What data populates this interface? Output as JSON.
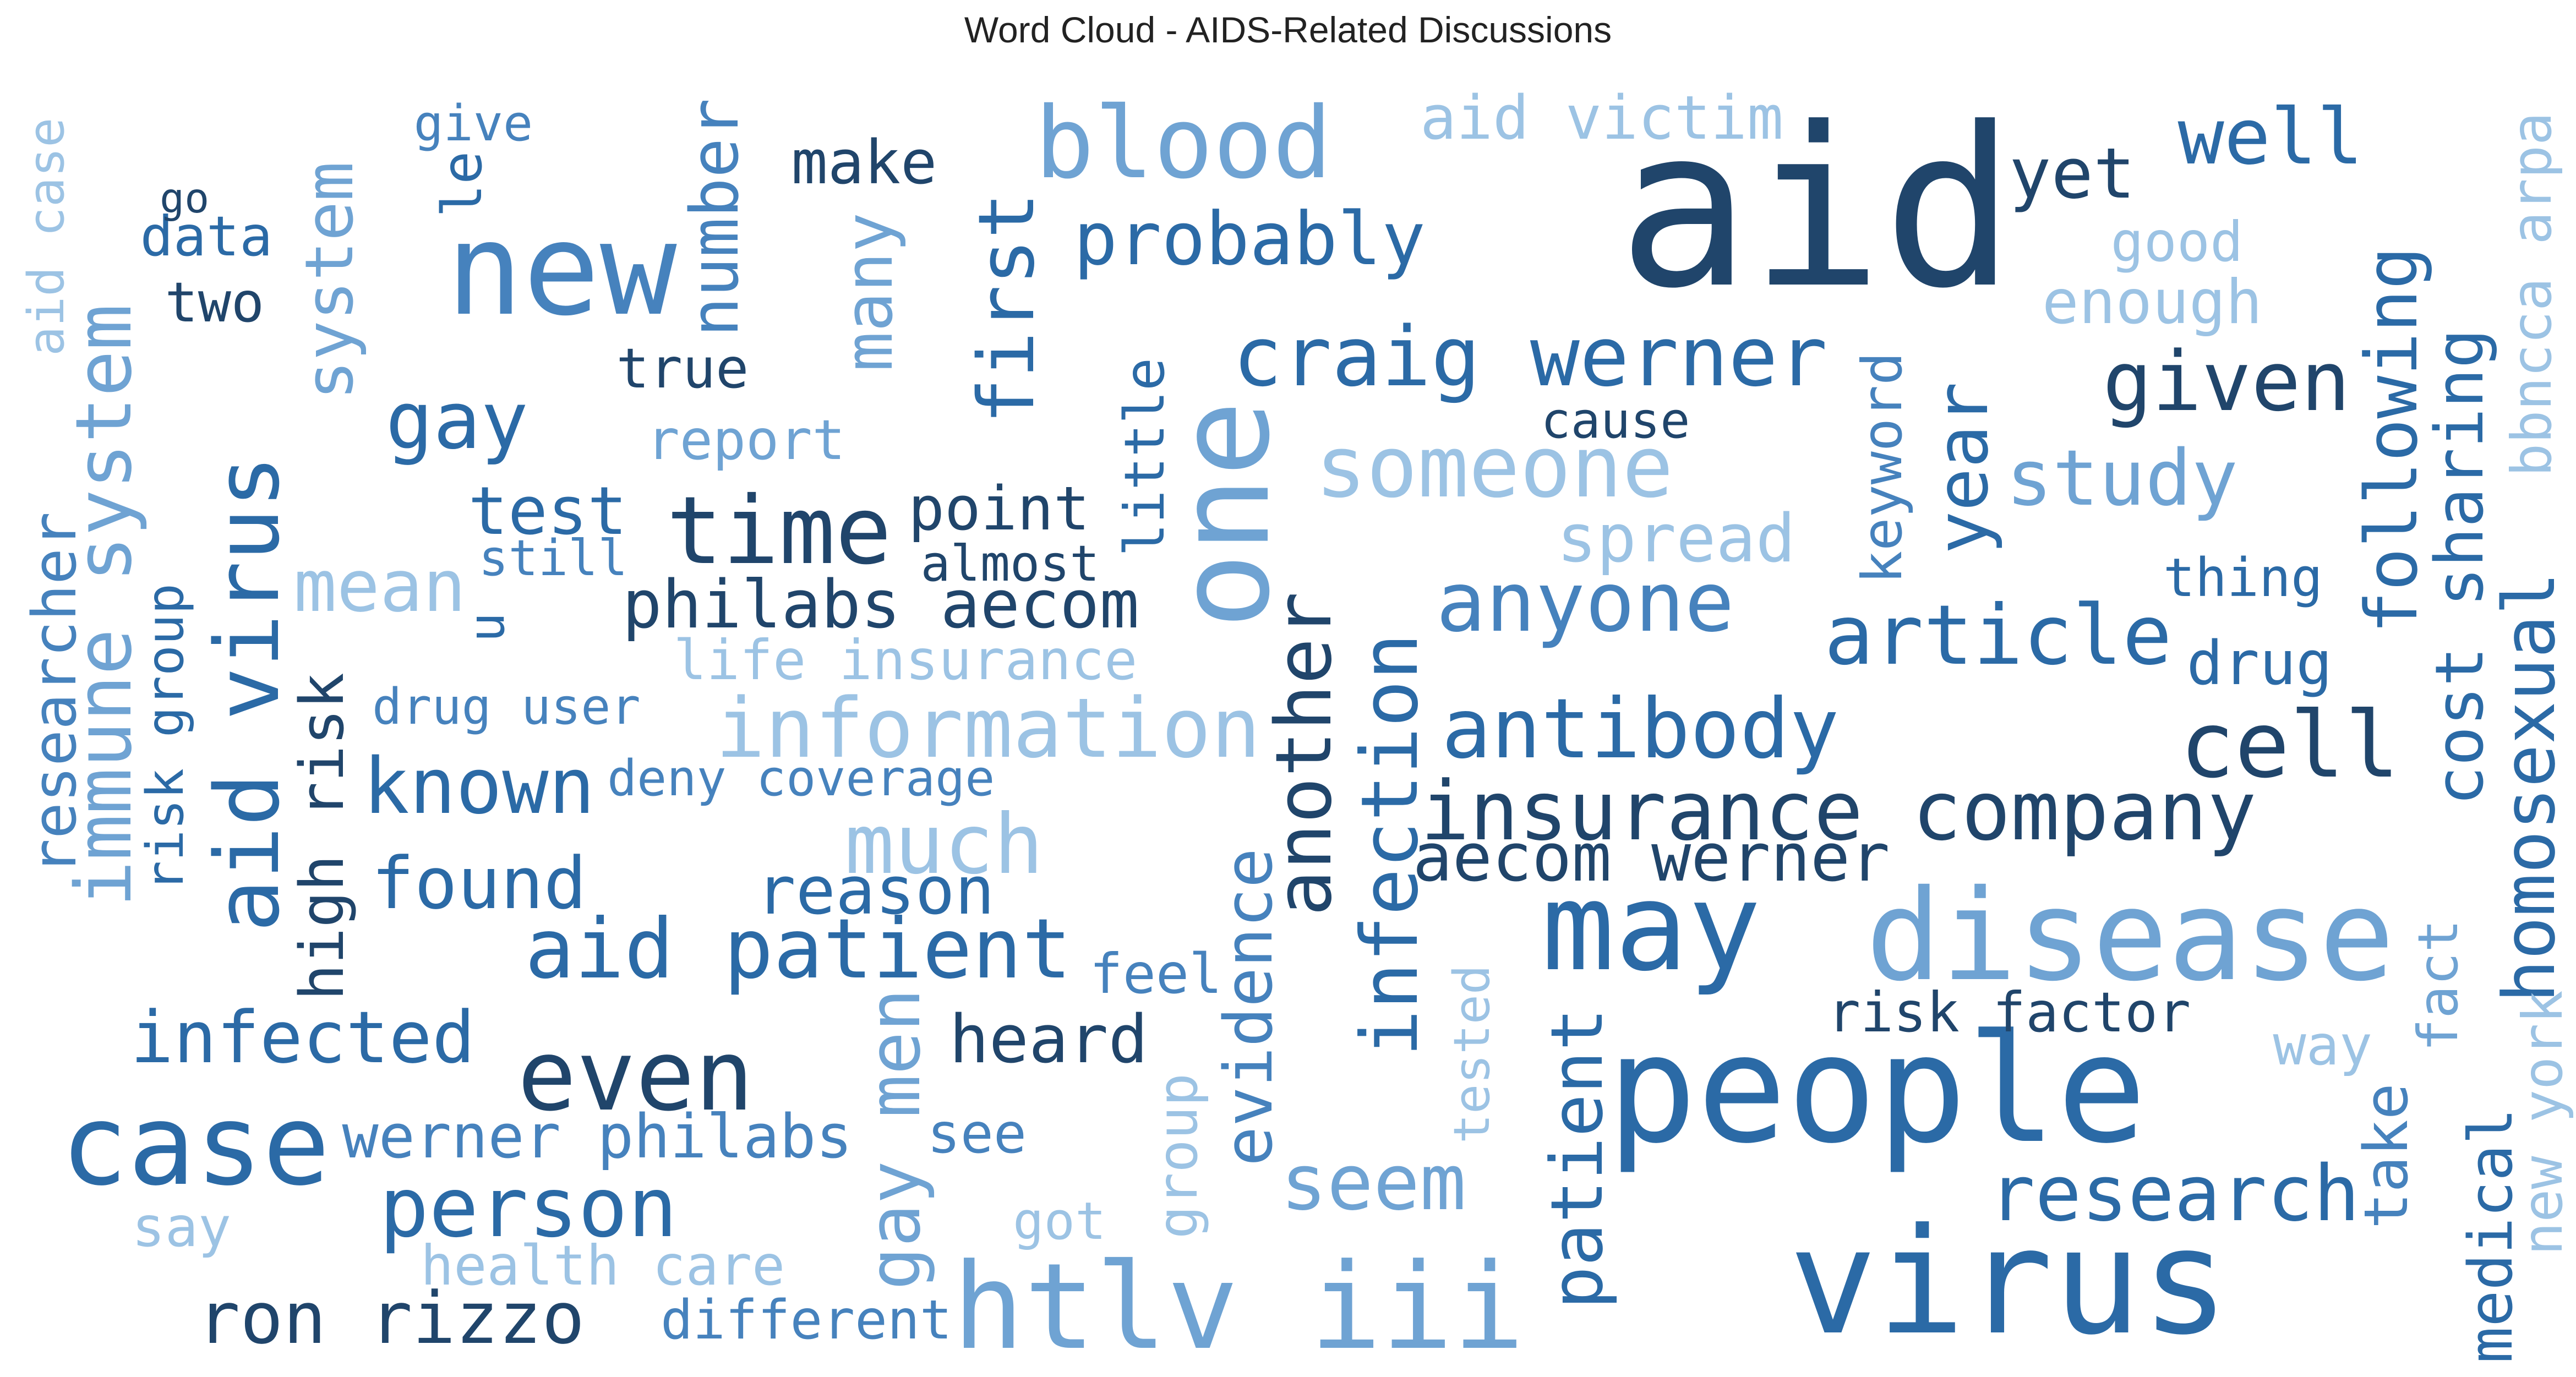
{
  "title": "Word Cloud - AIDS-Related Discussions",
  "palette": {
    "dark": "#20456b",
    "mid": "#2b6aa6",
    "medium": "#4682bd",
    "light": "#6fa3d3",
    "pale": "#9cc3e4"
  },
  "words": [
    {
      "text": "aid",
      "color": "dark"
    },
    {
      "text": "one",
      "color": "light"
    },
    {
      "text": "disease",
      "color": "light"
    },
    {
      "text": "people",
      "color": "mid"
    },
    {
      "text": "virus",
      "color": "mid"
    },
    {
      "text": "htlv iii",
      "color": "light"
    },
    {
      "text": "new",
      "color": "medium"
    },
    {
      "text": "case",
      "color": "mid"
    },
    {
      "text": "aid virus",
      "color": "mid"
    },
    {
      "text": "may",
      "color": "mid"
    },
    {
      "text": "blood",
      "color": "light"
    },
    {
      "text": "immune system",
      "color": "light"
    },
    {
      "text": "even",
      "color": "dark"
    },
    {
      "text": "time",
      "color": "dark"
    },
    {
      "text": "craig werner",
      "color": "mid"
    },
    {
      "text": "information",
      "color": "pale"
    },
    {
      "text": "insurance company",
      "color": "dark"
    },
    {
      "text": "aid patient",
      "color": "mid"
    },
    {
      "text": "patient",
      "color": "mid"
    },
    {
      "text": "cell",
      "color": "dark"
    },
    {
      "text": "year",
      "color": "mid"
    },
    {
      "text": "someone",
      "color": "pale"
    },
    {
      "text": "anyone",
      "color": "medium"
    },
    {
      "text": "antibody",
      "color": "mid"
    },
    {
      "text": "first",
      "color": "mid"
    },
    {
      "text": "another",
      "color": "dark"
    },
    {
      "text": "infection",
      "color": "mid"
    },
    {
      "text": "person",
      "color": "mid"
    },
    {
      "text": "infected",
      "color": "mid"
    },
    {
      "text": "homosexual",
      "color": "mid"
    },
    {
      "text": "following",
      "color": "mid"
    },
    {
      "text": "research",
      "color": "mid"
    },
    {
      "text": "article",
      "color": "mid"
    },
    {
      "text": "ron rizzo",
      "color": "dark"
    },
    {
      "text": "much",
      "color": "pale"
    },
    {
      "text": "seem",
      "color": "light"
    },
    {
      "text": "given",
      "color": "dark"
    },
    {
      "text": "known",
      "color": "mid"
    },
    {
      "text": "study",
      "color": "light"
    },
    {
      "text": "fact",
      "color": "light"
    },
    {
      "text": "gay",
      "color": "mid"
    },
    {
      "text": "system",
      "color": "light"
    },
    {
      "text": "many",
      "color": "light"
    },
    {
      "text": "probably",
      "color": "mid"
    },
    {
      "text": "cost sharing",
      "color": "mid"
    },
    {
      "text": "well",
      "color": "mid"
    },
    {
      "text": "philabs aecom",
      "color": "dark"
    },
    {
      "text": "aecom werner",
      "color": "dark"
    },
    {
      "text": "mean",
      "color": "pale"
    },
    {
      "text": "reason",
      "color": "mid"
    },
    {
      "text": "found",
      "color": "mid"
    },
    {
      "text": "heard",
      "color": "dark"
    },
    {
      "text": "evidence",
      "color": "medium"
    },
    {
      "text": "test",
      "color": "mid"
    },
    {
      "text": "enough",
      "color": "pale"
    },
    {
      "text": "spread",
      "color": "pale"
    },
    {
      "text": "werner philabs",
      "color": "medium"
    },
    {
      "text": "yet",
      "color": "dark"
    },
    {
      "text": "make",
      "color": "dark"
    },
    {
      "text": "number",
      "color": "medium"
    },
    {
      "text": "researcher",
      "color": "medium"
    },
    {
      "text": "aid victim",
      "color": "pale"
    },
    {
      "text": "u",
      "color": "mid"
    },
    {
      "text": "point",
      "color": "dark"
    },
    {
      "text": "gay men",
      "color": "light"
    },
    {
      "text": "see",
      "color": "medium"
    },
    {
      "text": "way",
      "color": "pale"
    },
    {
      "text": "drug",
      "color": "mid"
    },
    {
      "text": "risk factor",
      "color": "dark"
    },
    {
      "text": "take",
      "color": "medium"
    },
    {
      "text": "two",
      "color": "dark"
    },
    {
      "text": "bbncca arpa",
      "color": "pale"
    },
    {
      "text": "good",
      "color": "pale"
    },
    {
      "text": "feel",
      "color": "medium"
    },
    {
      "text": "keyword",
      "color": "medium"
    },
    {
      "text": "life insurance",
      "color": "pale"
    },
    {
      "text": "little",
      "color": "mid"
    },
    {
      "text": "high risk",
      "color": "dark"
    },
    {
      "text": "true",
      "color": "dark"
    },
    {
      "text": "report",
      "color": "light"
    },
    {
      "text": "different",
      "color": "medium"
    },
    {
      "text": "health care",
      "color": "pale"
    },
    {
      "text": "thing",
      "color": "mid"
    },
    {
      "text": "tested",
      "color": "pale"
    },
    {
      "text": "group",
      "color": "pale"
    },
    {
      "text": "data",
      "color": "mid"
    },
    {
      "text": "almost",
      "color": "dark"
    },
    {
      "text": "cause",
      "color": "dark"
    },
    {
      "text": "say",
      "color": "pale"
    },
    {
      "text": "got",
      "color": "pale"
    },
    {
      "text": "still",
      "color": "medium"
    },
    {
      "text": "deny coverage",
      "color": "medium"
    },
    {
      "text": "drug user",
      "color": "medium"
    },
    {
      "text": "give",
      "color": "medium"
    },
    {
      "text": "le",
      "color": "mid"
    },
    {
      "text": "go",
      "color": "dark"
    },
    {
      "text": "risk group",
      "color": "mid"
    },
    {
      "text": "aid case",
      "color": "pale"
    },
    {
      "text": "medical",
      "color": "mid"
    },
    {
      "text": "new york",
      "color": "pale"
    }
  ]
}
